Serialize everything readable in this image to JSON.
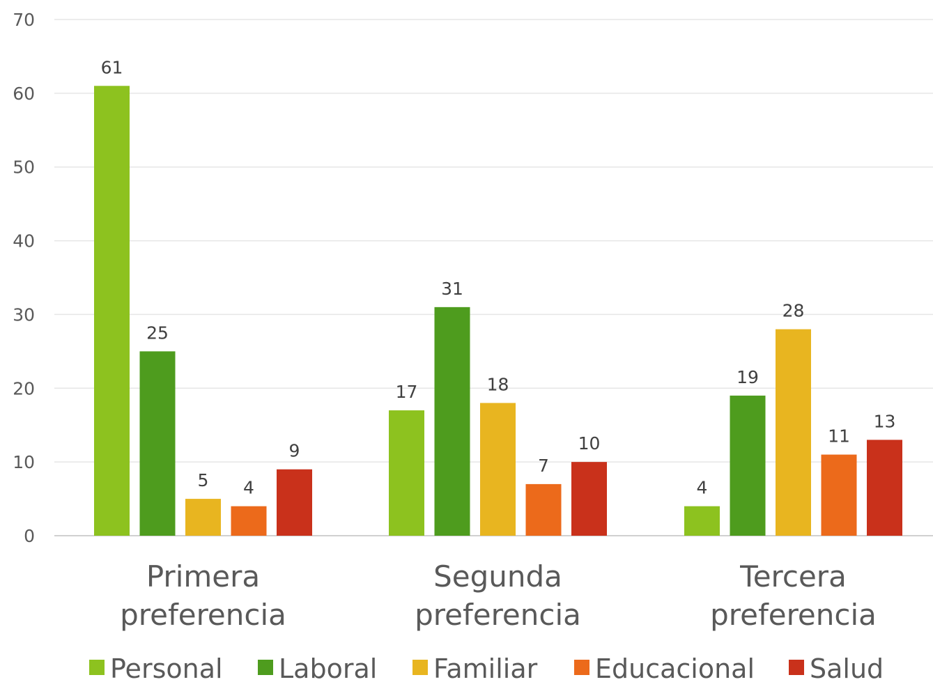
{
  "chart_data": {
    "type": "bar",
    "categories": [
      [
        "Primera",
        "preferencia"
      ],
      [
        "Segunda",
        "preferencia"
      ],
      [
        "Tercera",
        "preferencia"
      ]
    ],
    "series": [
      {
        "name": "Personal",
        "color": "#8dc21f",
        "values": [
          61,
          17,
          4
        ]
      },
      {
        "name": "Laboral",
        "color": "#4e9c1e",
        "values": [
          25,
          31,
          19
        ]
      },
      {
        "name": "Familiar",
        "color": "#e8b520",
        "values": [
          5,
          18,
          28
        ]
      },
      {
        "name": "Educacional",
        "color": "#ec6a1b",
        "values": [
          4,
          7,
          11
        ]
      },
      {
        "name": "Salud",
        "color": "#c9311b",
        "values": [
          9,
          10,
          13
        ]
      }
    ],
    "ylim": [
      0,
      70
    ],
    "yticks": [
      0,
      10,
      20,
      30,
      40,
      50,
      60,
      70
    ],
    "grid": true,
    "legend": "bottom",
    "data_labels": true
  }
}
